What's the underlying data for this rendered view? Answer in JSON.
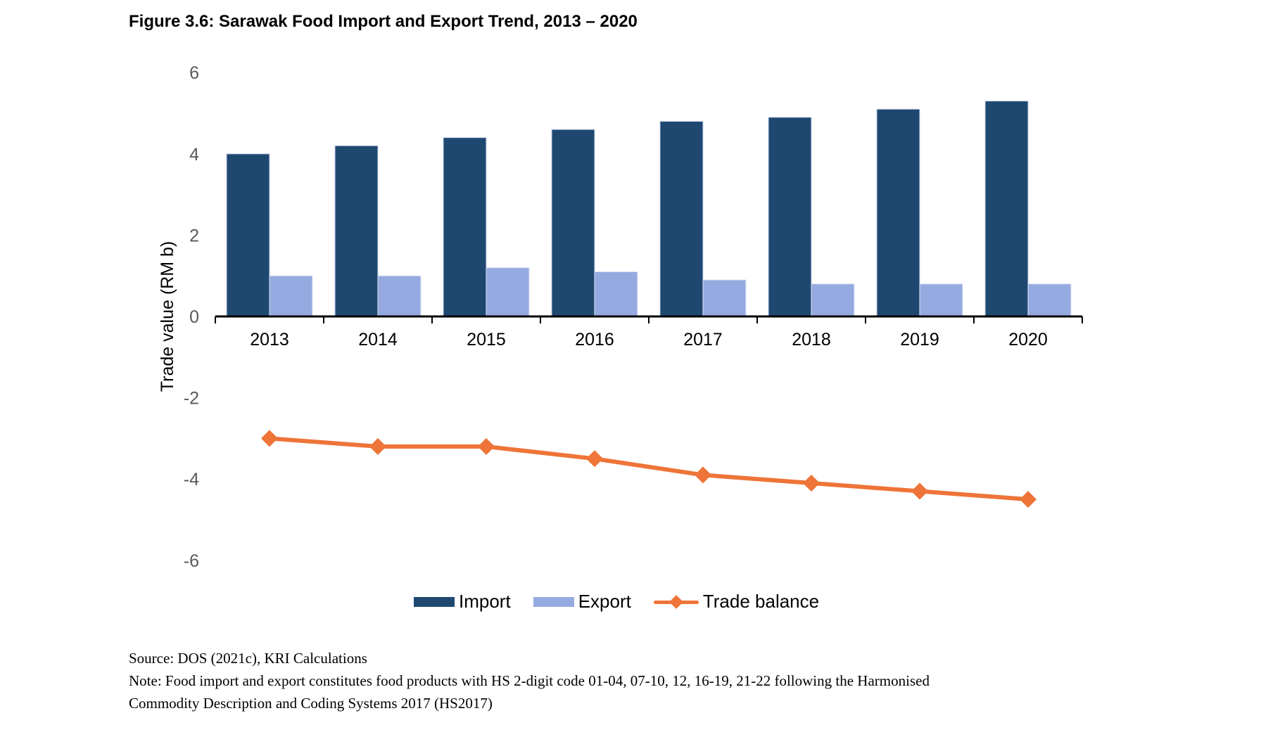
{
  "figure": {
    "title": "Figure 3.6: Sarawak Food Import and Export Trend, 2013 – 2020",
    "source": "Source: DOS (2021c), KRI Calculations",
    "note_line1": "Note: Food import and export constitutes food products with HS 2-digit code 01-04, 07-10, 12, 16-19, 21-22 following the Harmonised",
    "note_line2": "Commodity Description and Coding Systems 2017 (HS2017)"
  },
  "colors": {
    "import": "#1F4871",
    "export": "#95AAE0",
    "trade_balance": "#EE7438",
    "axis": "#000000",
    "tick_label": "#595959"
  },
  "chart_data": {
    "type": "bar",
    "title": "Figure 3.6: Sarawak Food Import and Export Trend, 2013 – 2020",
    "xlabel": "",
    "ylabel": "Trade value (RM b)",
    "ylim": [
      -6,
      6
    ],
    "yticks": [
      6,
      4,
      2,
      0,
      -2,
      -4,
      -6
    ],
    "grid": false,
    "legend_position": "bottom",
    "categories": [
      "2013",
      "2014",
      "2015",
      "2016",
      "2017",
      "2018",
      "2019",
      "2020"
    ],
    "series": [
      {
        "name": "Import",
        "type": "bar",
        "values": [
          4.0,
          4.2,
          4.4,
          4.6,
          4.8,
          4.9,
          5.1,
          5.3
        ]
      },
      {
        "name": "Export",
        "type": "bar",
        "values": [
          1.0,
          1.0,
          1.2,
          1.1,
          0.9,
          0.8,
          0.8,
          0.8
        ]
      },
      {
        "name": "Trade balance",
        "type": "line",
        "marker": "diamond",
        "values": [
          -3.0,
          -3.2,
          -3.2,
          -3.5,
          -3.9,
          -4.1,
          -4.3,
          -4.5
        ]
      }
    ]
  }
}
